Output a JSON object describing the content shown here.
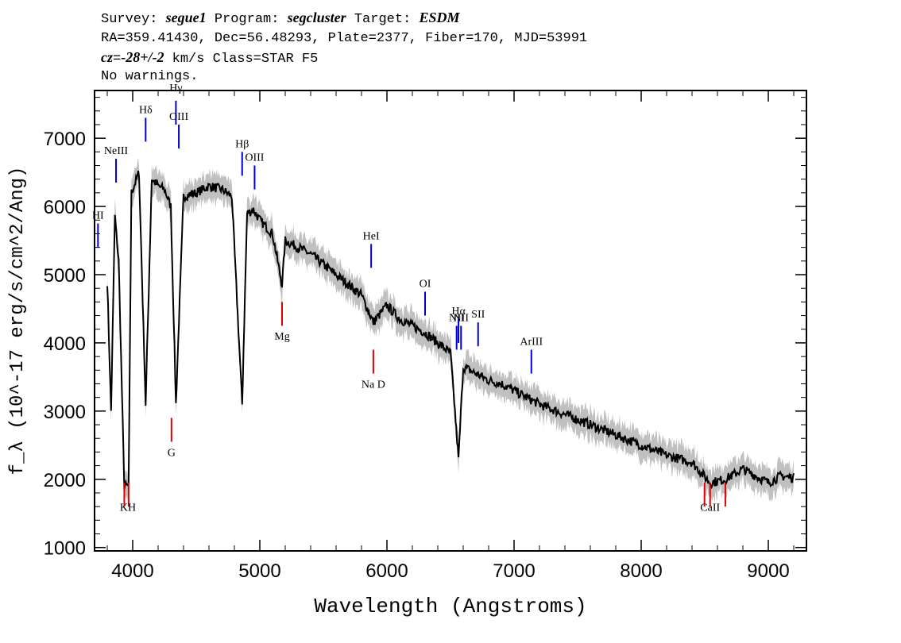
{
  "header": {
    "survey_label": "Survey: ",
    "survey": "segue1",
    "program_label": " Program: ",
    "program": "segcluster",
    "target_label": " Target: ",
    "target": "ESDM",
    "line2": "RA=359.41430, Dec=56.48293, Plate=2377, Fiber=170, MJD=53991",
    "cz_label": "cz",
    "cz_eq": "=",
    "cz_value": "-28+/-2",
    "cz_unit": " km/s Class=STAR F5",
    "line4": "No warnings."
  },
  "chart_data": {
    "type": "line",
    "title": "",
    "xlabel": "Wavelength (Angstroms)",
    "ylabel": "f_λ (10^-17 erg/s/cm^2/Ang)",
    "xlim": [
      3700,
      9300
    ],
    "ylim": [
      950,
      7700
    ],
    "xticks": [
      4000,
      5000,
      6000,
      7000,
      8000,
      9000
    ],
    "yticks": [
      1000,
      2000,
      3000,
      4000,
      5000,
      6000,
      7000
    ],
    "colors": {
      "spectrum": "#000000",
      "error": "#c0c0c0",
      "emission": "#0000cc",
      "absorption": "#dd0000"
    },
    "series": [
      {
        "name": "flux",
        "x": [
          3800,
          3830,
          3860,
          3890,
          3934,
          3968,
          3990,
          4050,
          4102,
          4150,
          4200,
          4250,
          4300,
          4340,
          4400,
          4500,
          4600,
          4700,
          4780,
          4861,
          4900,
          4950,
          5000,
          5100,
          5175,
          5200,
          5300,
          5400,
          5500,
          5600,
          5700,
          5800,
          5893,
          6000,
          6100,
          6200,
          6300,
          6400,
          6500,
          6563,
          6600,
          6700,
          6800,
          6900,
          7000,
          7200,
          7400,
          7600,
          7800,
          8000,
          8200,
          8400,
          8542,
          8662,
          8800,
          9000,
          9100,
          9200
        ],
        "y": [
          4900,
          3000,
          5850,
          5200,
          1900,
          1900,
          6200,
          6500,
          3100,
          6400,
          6300,
          6250,
          6000,
          3100,
          6150,
          6200,
          6300,
          6250,
          6150,
          3100,
          5900,
          5950,
          5800,
          5600,
          4850,
          5500,
          5400,
          5300,
          5150,
          5000,
          4850,
          4700,
          4300,
          4550,
          4350,
          4250,
          4150,
          4000,
          3850,
          2300,
          3650,
          3550,
          3450,
          3400,
          3300,
          3100,
          2950,
          2800,
          2650,
          2500,
          2350,
          2250,
          1950,
          2000,
          2150,
          1950,
          2050,
          2020
        ]
      }
    ],
    "emission_lines": [
      {
        "label": "NeIII",
        "x": 3869
      },
      {
        "label": "HI",
        "x": 3727
      },
      {
        "label": "Hδ",
        "x": 4102
      },
      {
        "label": "Hγ",
        "x": 4340
      },
      {
        "label": "OIII",
        "x": 4363
      },
      {
        "label": "Hβ",
        "x": 4861
      },
      {
        "label": "OIII",
        "x": 4959
      },
      {
        "label": "HeI",
        "x": 5876
      },
      {
        "label": "OI",
        "x": 6300
      },
      {
        "label": "NII",
        "x": 6548
      },
      {
        "label": "Hα",
        "x": 6563
      },
      {
        "label": "NII",
        "x": 6583
      },
      {
        "label": "SII",
        "x": 6717
      },
      {
        "label": "ArIII",
        "x": 7136
      }
    ],
    "absorption_lines": [
      {
        "label": "KH",
        "x": 3950
      },
      {
        "label": "G",
        "x": 4305
      },
      {
        "label": "Mg",
        "x": 5175
      },
      {
        "label": "Na D",
        "x": 5893
      },
      {
        "label": "CaII",
        "x": 8542
      }
    ]
  }
}
